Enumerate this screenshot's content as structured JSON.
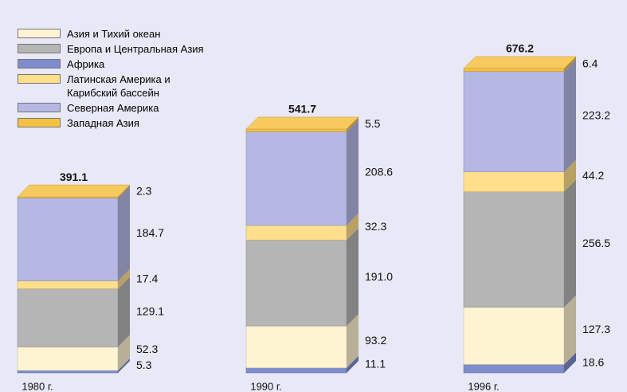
{
  "chart_data": {
    "type": "stacked-bar-3d",
    "categories": [
      "1980 г.",
      "1990 г.",
      "1996 г."
    ],
    "series": [
      {
        "name": "Африка",
        "color": "#7e8ccc",
        "values": [
          5.3,
          11.1,
          18.6
        ]
      },
      {
        "name": "Азия и Тихий океан",
        "color": "#fff3d2",
        "values": [
          52.3,
          93.2,
          127.3
        ]
      },
      {
        "name": "Европа и Центральная Азия",
        "color": "#b5b5b5",
        "values": [
          129.1,
          191.0,
          256.5
        ],
        "value_labels": [
          "129.1",
          "191.0",
          "256.5"
        ]
      },
      {
        "name": "Латинская Америка и\nКарибский бассейн",
        "color": "#ffdf8c",
        "values": [
          17.4,
          32.3,
          44.2
        ]
      },
      {
        "name": "Северная Америка",
        "color": "#b4b8e2",
        "values": [
          184.7,
          208.6,
          223.2
        ]
      },
      {
        "name": "Западная Азия",
        "color": "#f5c143",
        "values": [
          2.3,
          5.5,
          6.4
        ]
      }
    ],
    "legend_order": [
      1,
      2,
      0,
      3,
      4,
      5
    ],
    "totals": [
      391.1,
      541.7,
      676.2
    ]
  }
}
